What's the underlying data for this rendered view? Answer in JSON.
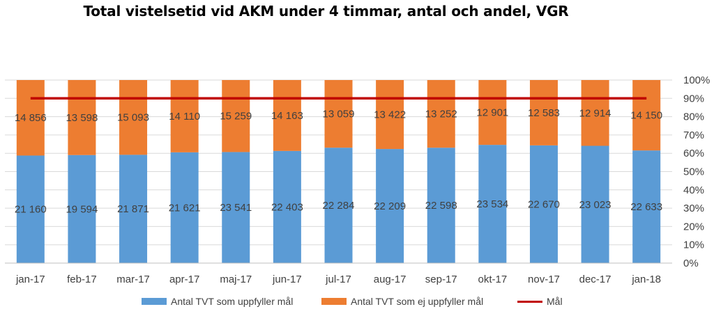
{
  "chart_data": {
    "type": "bar",
    "stacked": "percent",
    "title": "Total vistelsetid vid AKM under 4 timmar, antal och andel, VGR",
    "categories": [
      "jan-17",
      "feb-17",
      "mar-17",
      "apr-17",
      "maj-17",
      "jun-17",
      "jul-17",
      "aug-17",
      "sep-17",
      "okt-17",
      "nov-17",
      "dec-17",
      "jan-18"
    ],
    "series": [
      {
        "name": "Antal TVT som uppfyller mål",
        "color": "#5B9BD5",
        "values": [
          21160,
          19594,
          21871,
          21621,
          23541,
          22403,
          22284,
          22209,
          22598,
          23534,
          22670,
          23023,
          22633
        ],
        "labels": [
          "21 160",
          "19 594",
          "21 871",
          "21 621",
          "23 541",
          "22 403",
          "22 284",
          "22 209",
          "22 598",
          "23 534",
          "22 670",
          "23 023",
          "22 633"
        ]
      },
      {
        "name": "Antal TVT som ej uppfyller mål",
        "color": "#ED7D31",
        "values": [
          14856,
          13598,
          15093,
          14110,
          15259,
          14163,
          13059,
          13422,
          13252,
          12901,
          12583,
          12914,
          14150
        ],
        "labels": [
          "14 856",
          "13 598",
          "15 093",
          "14 110",
          "15 259",
          "14 163",
          "13 059",
          "13 422",
          "13 252",
          "12 901",
          "12 583",
          "12 914",
          "14 150"
        ]
      }
    ],
    "target_line": {
      "name": "Mål",
      "color": "#C00000",
      "value": 0.9
    },
    "y_axis": {
      "position": "right",
      "ticks": [
        "0%",
        "10%",
        "20%",
        "30%",
        "40%",
        "50%",
        "60%",
        "70%",
        "80%",
        "90%",
        "100%"
      ],
      "ylim": [
        0,
        1
      ]
    },
    "grid": true,
    "legend": "bottom"
  }
}
